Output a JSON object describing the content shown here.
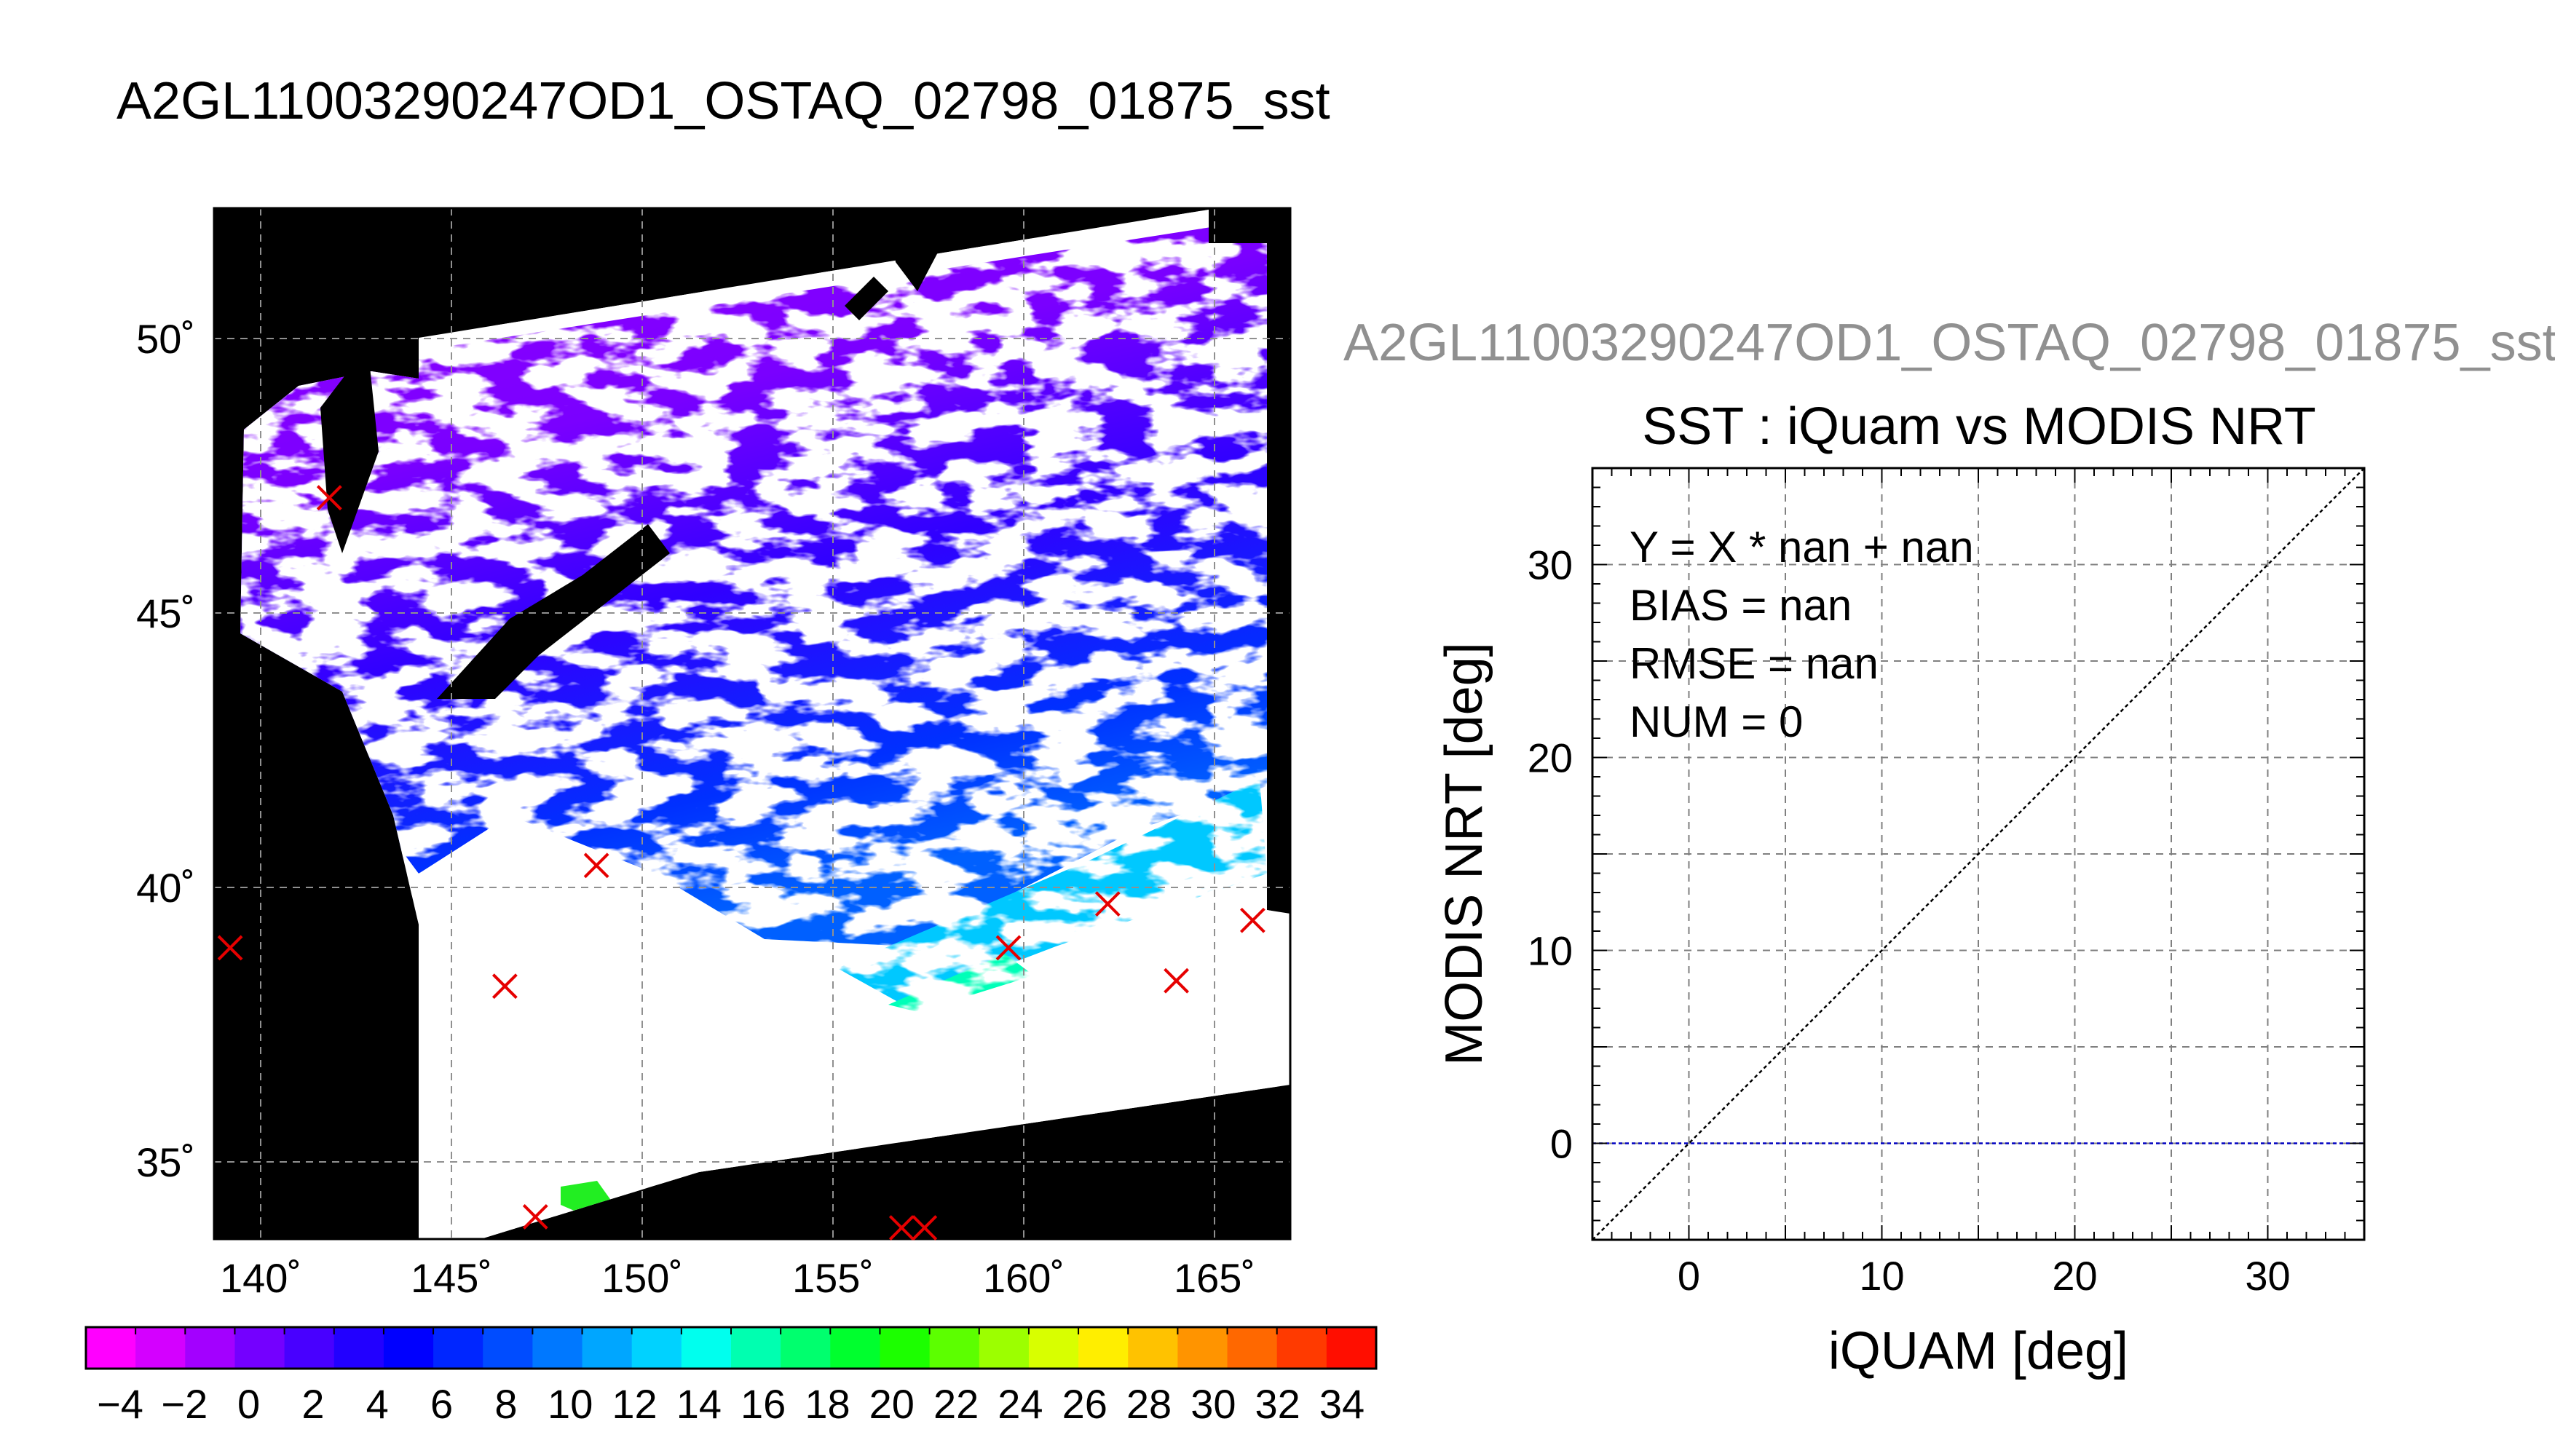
{
  "header": {
    "title": "A2GL11003290247OD1_OSTAQ_02798_01875_sst"
  },
  "map": {
    "lon_ticks": [
      "140˚",
      "145˚",
      "150˚",
      "155˚",
      "160˚",
      "165˚"
    ],
    "lat_ticks": [
      "50˚",
      "45˚",
      "40˚",
      "35˚"
    ],
    "marker_color": "#e60000",
    "markers": [
      {
        "lon": 141.8,
        "lat": 47.1
      },
      {
        "lon": 139.2,
        "lat": 38.9
      },
      {
        "lon": 146.4,
        "lat": 38.2
      },
      {
        "lon": 148.8,
        "lat": 40.4
      },
      {
        "lon": 147.2,
        "lat": 34.0
      },
      {
        "lon": 156.8,
        "lat": 33.8
      },
      {
        "lon": 157.4,
        "lat": 33.8
      },
      {
        "lon": 159.6,
        "lat": 38.9
      },
      {
        "lon": 162.2,
        "lat": 39.7
      },
      {
        "lon": 164.0,
        "lat": 38.3
      },
      {
        "lon": 166.0,
        "lat": 39.4
      }
    ]
  },
  "colorbar": {
    "labels": [
      "-4",
      "-2",
      "0",
      "2",
      "4",
      "6",
      "8",
      "10",
      "12",
      "14",
      "16",
      "18",
      "20",
      "22",
      "24",
      "26",
      "28",
      "30",
      "32",
      "34"
    ],
    "colors": [
      "#ff00ff",
      "#d400ff",
      "#a300ff",
      "#7400ff",
      "#4800ff",
      "#2200ff",
      "#0000ff",
      "#0026ff",
      "#004cff",
      "#0078ff",
      "#00a6ff",
      "#00d2ff",
      "#00ffee",
      "#00ffb0",
      "#00ff6e",
      "#00ff2e",
      "#1cff00",
      "#5cff00",
      "#9cff00",
      "#d8ff00",
      "#ffee00",
      "#ffc200",
      "#ff9400",
      "#ff6800",
      "#ff3a00",
      "#ff0e00"
    ]
  },
  "chart_data": {
    "type": "scatter",
    "file_title": "A2GL11003290247OD1_OSTAQ_02798_01875_sst",
    "title": "SST : iQuam vs MODIS NRT",
    "xlabel": "iQUAM [deg]",
    "ylabel": "MODIS NRT [deg]",
    "xlim": [
      -5,
      35
    ],
    "ylim": [
      -5,
      35
    ],
    "xticks": [
      0,
      10,
      20,
      30
    ],
    "yticks": [
      0,
      10,
      20,
      30
    ],
    "grid": true,
    "points": [],
    "stats": [
      "Y = X * nan + nan",
      "BIAS = nan",
      "RMSE = nan",
      "NUM = 0"
    ],
    "reference_lines": [
      {
        "name": "one-to-one",
        "x": [
          -5,
          35
        ],
        "y": [
          -5,
          35
        ],
        "color": "#000000"
      },
      {
        "name": "zero",
        "x": [
          -5,
          35
        ],
        "y": [
          0,
          0
        ],
        "color": "#0000c0"
      }
    ]
  }
}
